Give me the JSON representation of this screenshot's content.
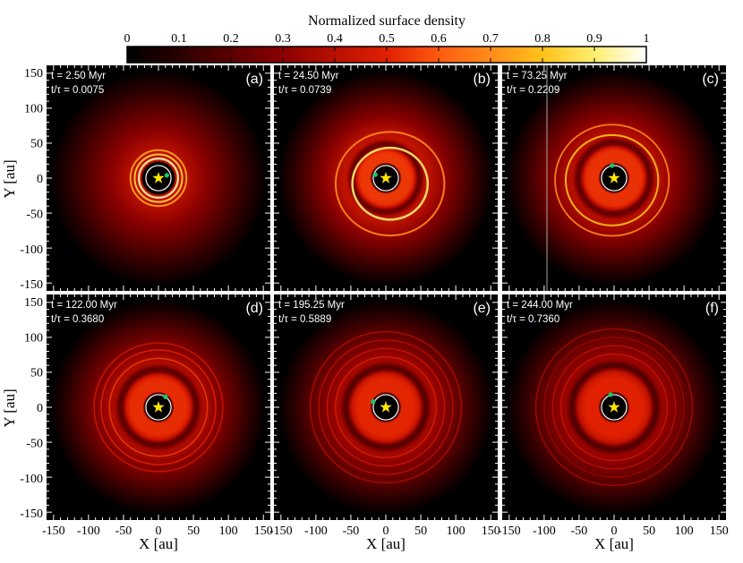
{
  "figure": {
    "colorbar": {
      "label": "Normalized surface density",
      "ticks": [
        "0",
        "0.1",
        "0.2",
        "0.3",
        "0.4",
        "0.5",
        "0.6",
        "0.7",
        "0.8",
        "0.9",
        "1"
      ],
      "colors": [
        "#000000",
        "#2a0000",
        "#5a0000",
        "#8a0000",
        "#b81000",
        "#e02000",
        "#ff5a10",
        "#ff8c1a",
        "#ffc21a",
        "#ffee70",
        "#ffffff"
      ]
    },
    "axes": {
      "xlabel": "X [au]",
      "ylabel": "Y [au]",
      "ticks": [
        "-150",
        "-100",
        "-50",
        "0",
        "50",
        "100",
        "150"
      ],
      "yticks": [
        "150",
        "100",
        "50",
        "0",
        "-50",
        "-100",
        "-150"
      ]
    }
  },
  "chart_data": [
    {
      "type": "heatmap",
      "panel": "(a)",
      "time": "t = 2.50 Myr",
      "ratio": "t/τ = 0.0075",
      "xlim": [
        -160,
        160
      ],
      "ylim": [
        -160,
        160
      ],
      "planet": {
        "x": 12,
        "y": 4
      },
      "features": [
        {
          "r": 28,
          "w": 2.2,
          "b": 0.95
        },
        {
          "r": 34,
          "w": 2.0,
          "b": 0.85
        },
        {
          "r": 40,
          "w": 2.0,
          "b": 0.75
        }
      ]
    },
    {
      "type": "heatmap",
      "panel": "(b)",
      "time": "t = 24.50 Myr",
      "ratio": "t/τ = 0.0739",
      "xlim": [
        -160,
        160
      ],
      "ylim": [
        -160,
        160
      ],
      "planet": {
        "x": -15,
        "y": 5
      },
      "features": [
        {
          "r": 52,
          "w": 2.5,
          "b": 0.9
        },
        {
          "r": 75,
          "w": 2.0,
          "b": 0.7
        }
      ]
    },
    {
      "type": "heatmap",
      "panel": "(c)",
      "time": "t = 73.25 Myr",
      "ratio": "t/τ = 0.2209",
      "xlim": [
        -160,
        160
      ],
      "ylim": [
        -160,
        160
      ],
      "planet": {
        "x": -3,
        "y": 18
      },
      "features": [
        {
          "r": 65,
          "w": 2.0,
          "b": 0.8
        },
        {
          "r": 80,
          "w": 1.8,
          "b": 0.7
        }
      ]
    },
    {
      "type": "heatmap",
      "panel": "(d)",
      "time": "t = 122.00 Myr",
      "ratio": "t/τ = 0.3680",
      "xlim": [
        -160,
        160
      ],
      "ylim": [
        -160,
        160
      ],
      "planet": {
        "x": 10,
        "y": 15
      },
      "features": [
        {
          "r": 70,
          "w": 1.5,
          "b": 0.55
        },
        {
          "r": 82,
          "w": 1.5,
          "b": 0.5
        },
        {
          "r": 92,
          "w": 1.5,
          "b": 0.45
        }
      ]
    },
    {
      "type": "heatmap",
      "panel": "(e)",
      "time": "t = 195.25 Myr",
      "ratio": "t/τ = 0.5889",
      "xlim": [
        -160,
        160
      ],
      "ylim": [
        -160,
        160
      ],
      "planet": {
        "x": -18,
        "y": 8
      },
      "features": [
        {
          "r": 72,
          "w": 1.3,
          "b": 0.5
        },
        {
          "r": 84,
          "w": 1.3,
          "b": 0.45
        },
        {
          "r": 96,
          "w": 1.3,
          "b": 0.42
        },
        {
          "r": 108,
          "w": 1.3,
          "b": 0.4
        }
      ]
    },
    {
      "type": "heatmap",
      "panel": "(f)",
      "time": "t = 244.00 Myr",
      "ratio": "t/τ = 0.7360",
      "xlim": [
        -160,
        160
      ],
      "ylim": [
        -160,
        160
      ],
      "planet": {
        "x": -5,
        "y": 18
      },
      "features": [
        {
          "r": 76,
          "w": 1.2,
          "b": 0.45
        },
        {
          "r": 88,
          "w": 1.2,
          "b": 0.42
        },
        {
          "r": 100,
          "w": 1.2,
          "b": 0.4
        },
        {
          "r": 112,
          "w": 1.2,
          "b": 0.38
        }
      ]
    }
  ]
}
